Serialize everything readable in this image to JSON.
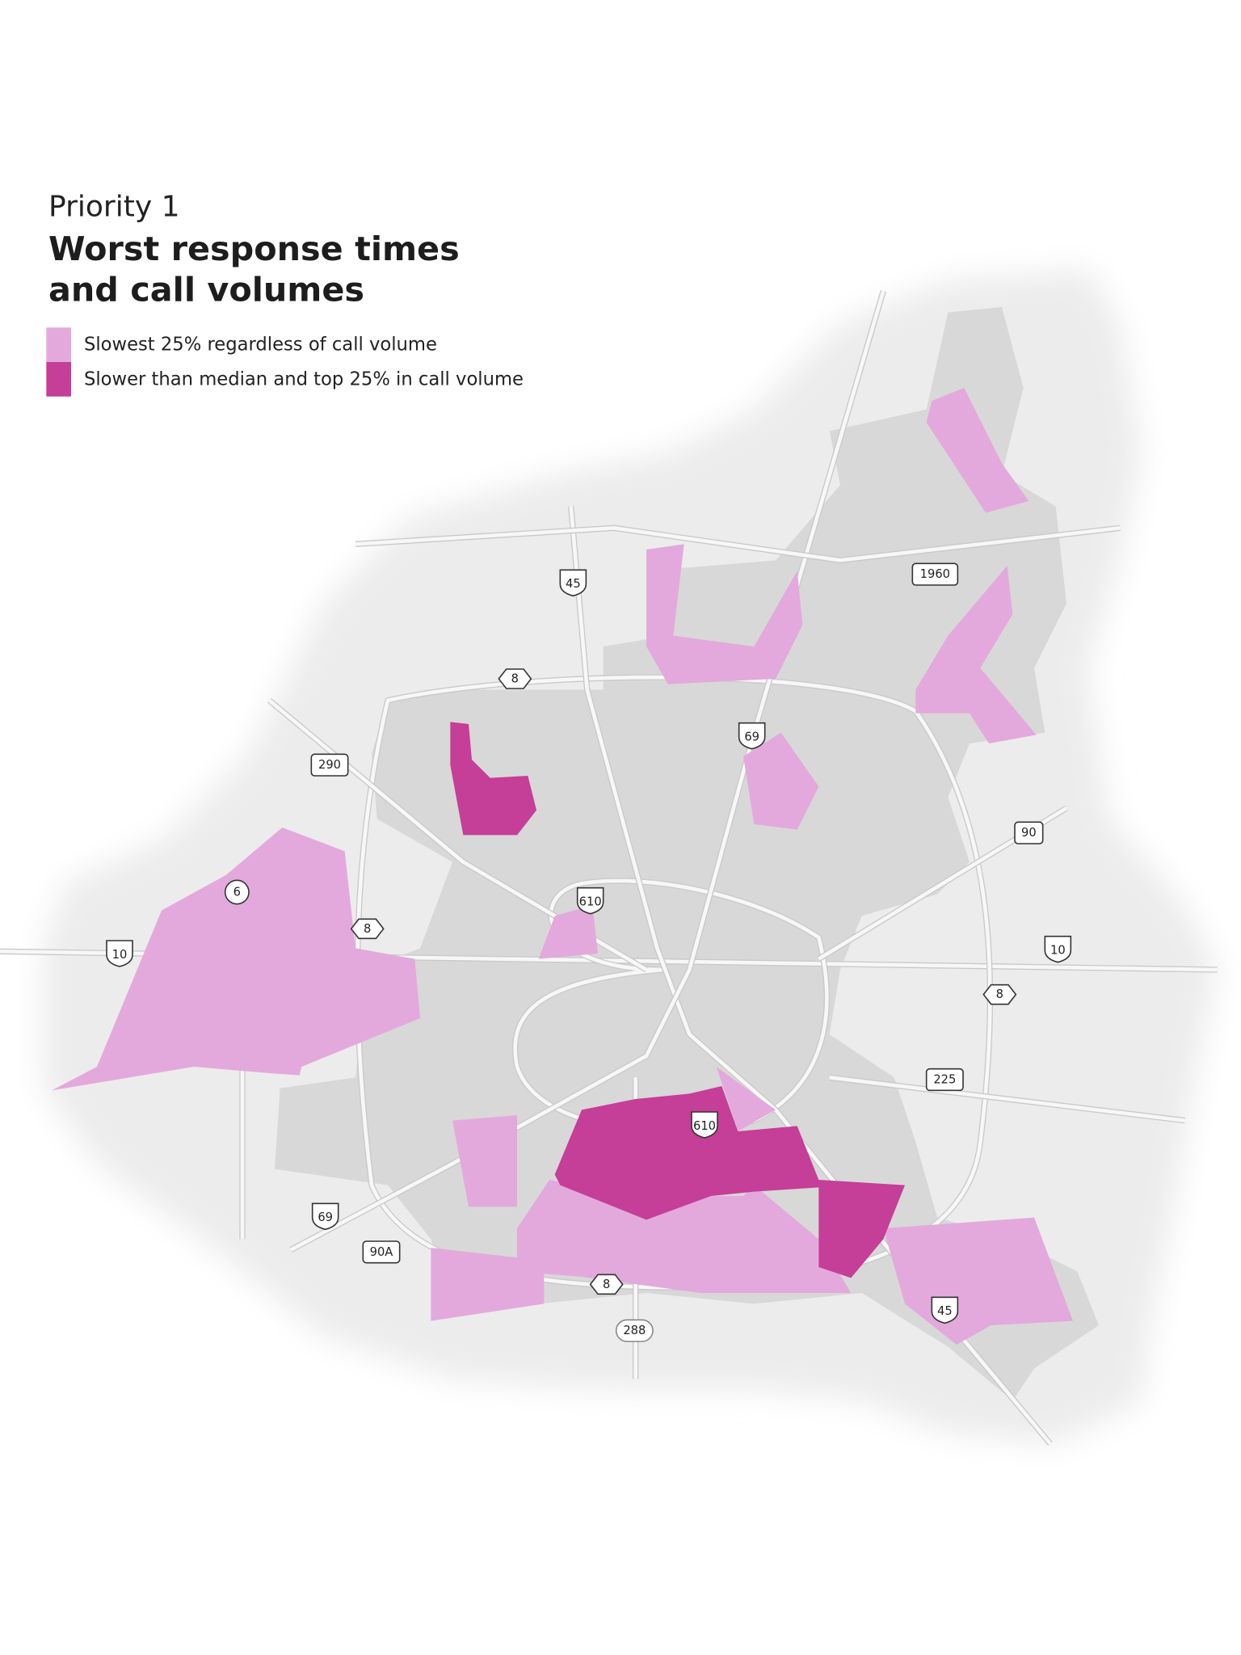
{
  "header": {
    "kicker": "Priority 1",
    "title_bold": "Worst",
    "title_rest": " response times",
    "title_line2": "and call volumes"
  },
  "legend": [
    {
      "label": "Slowest 25% regardless of call volume",
      "color": "#e3a9dc"
    },
    {
      "label": "Slower than median and top 25% in call volume",
      "color": "#c53e97"
    }
  ],
  "highway_labels": [
    "45",
    "1960",
    "8",
    "69",
    "290",
    "90",
    "6",
    "610",
    "8",
    "10",
    "10",
    "8",
    "225",
    "610",
    "69",
    "90A",
    "8",
    "288",
    "45"
  ]
}
